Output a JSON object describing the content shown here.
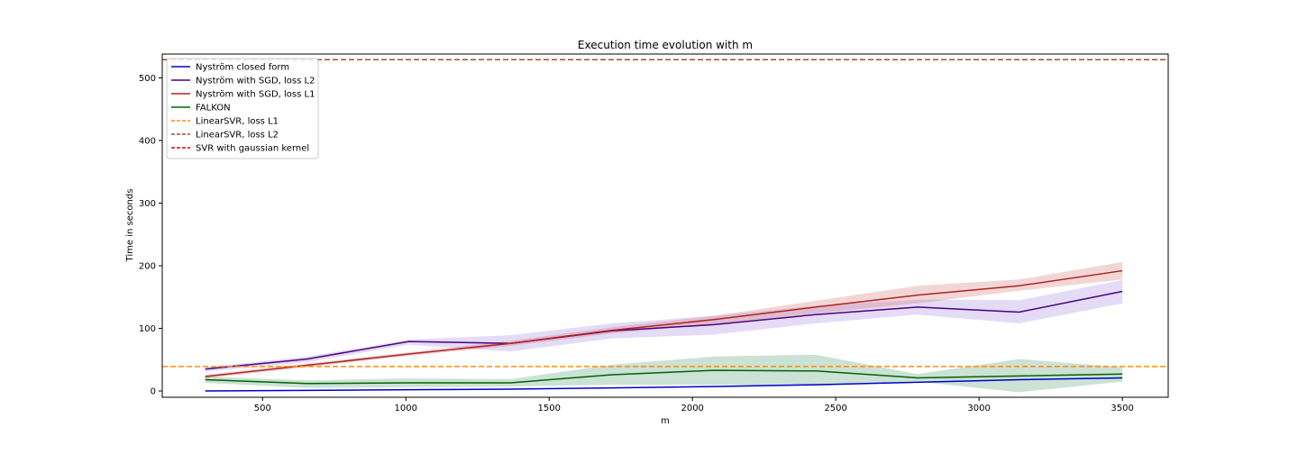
{
  "chart_data": {
    "type": "line",
    "title": "Execution time evolution with m",
    "xlabel": "m",
    "ylabel": "Time in seconds",
    "xlim": [
      150,
      3660
    ],
    "ylim": [
      -10,
      538
    ],
    "xticks": [
      500,
      1000,
      1500,
      2000,
      2500,
      3000,
      3500
    ],
    "yticks": [
      0,
      100,
      200,
      300,
      400,
      500
    ],
    "grid": false,
    "legend_position": "top-left",
    "x": [
      300,
      655,
      1010,
      1365,
      1720,
      2075,
      2430,
      2785,
      3140,
      3500
    ],
    "series": [
      {
        "name": "Nyström closed form",
        "color": "#0000cc",
        "style": "solid",
        "values": [
          0,
          1,
          2,
          3,
          5,
          7,
          10,
          14,
          18,
          21
        ]
      },
      {
        "name": "Nyström with SGD, loss L2",
        "color": "#4b0082",
        "band_color": "#9370db",
        "style": "solid",
        "values": [
          35,
          51,
          79,
          76,
          96,
          106,
          122,
          134,
          126,
          159
        ],
        "lower": [
          31,
          46,
          74,
          63,
          84,
          90,
          108,
          122,
          108,
          140
        ],
        "upper": [
          38,
          55,
          82,
          89,
          108,
          120,
          136,
          146,
          145,
          177
        ]
      },
      {
        "name": "Nyström with SGD, loss L1",
        "color": "#b22222",
        "band_color": "#cd5c5c",
        "style": "solid",
        "values": [
          23,
          41,
          59,
          76,
          97,
          114,
          134,
          153,
          168,
          192
        ],
        "lower": [
          20,
          38,
          56,
          72,
          92,
          107,
          124,
          140,
          160,
          178
        ],
        "upper": [
          26,
          44,
          62,
          80,
          102,
          120,
          144,
          168,
          178,
          206
        ]
      },
      {
        "name": "FALKON",
        "color": "#006400",
        "band_color": "#2e8b57",
        "style": "solid",
        "values": [
          18,
          12,
          13,
          13,
          26,
          33,
          32,
          21,
          24,
          27
        ],
        "lower": [
          13,
          5,
          6,
          7,
          10,
          10,
          8,
          15,
          -2,
          15
        ],
        "upper": [
          23,
          17,
          20,
          19,
          42,
          55,
          58,
          27,
          51,
          38
        ]
      },
      {
        "name": "LinearSVR, loss L1",
        "color": "#ff8c00",
        "style": "dashed",
        "constant": 39
      },
      {
        "name": "LinearSVR, loss L2",
        "color": "#a0522d",
        "style": "dashed",
        "constant": 529
      },
      {
        "name": "SVR with gaussian kernel",
        "color": "#e00000",
        "style": "dashed"
      }
    ]
  }
}
